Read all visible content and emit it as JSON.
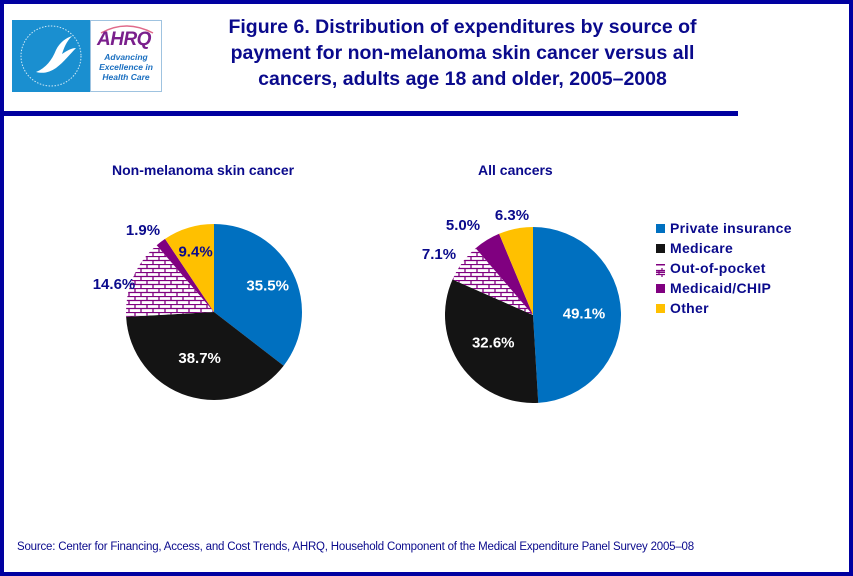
{
  "logo": {
    "hhs_icon": "hhs-eagle-icon",
    "ahrq_wordmark": "AHRQ",
    "ahrq_tagline": "Advancing Excellence in Health Care"
  },
  "title": "Figure 6. Distribution of expenditures by source of payment for non-melanoma skin cancer versus all cancers, adults age 18 and older, 2005–2008",
  "colors": {
    "frame": "#0000a0",
    "text": "#0a0a8c",
    "private_insurance": "#0070c0",
    "medicare": "#141414",
    "out_of_pocket": "#800080",
    "medicaid_chip": "#800080",
    "other": "#ffc000"
  },
  "legend": [
    {
      "label": "Private insurance",
      "key": "private_insurance"
    },
    {
      "label": "Medicare",
      "key": "medicare"
    },
    {
      "label": "Out-of-pocket",
      "key": "out_of_pocket"
    },
    {
      "label": "Medicaid/CHIP",
      "key": "medicaid_chip"
    },
    {
      "label": "Other",
      "key": "other"
    }
  ],
  "chart_data": [
    {
      "type": "pie",
      "title": "Non-melanoma skin cancer",
      "categories": [
        "Private insurance",
        "Medicare",
        "Out-of-pocket",
        "Medicaid/CHIP",
        "Other"
      ],
      "values": [
        35.5,
        38.7,
        14.6,
        1.9,
        9.4
      ],
      "labels": [
        "35.5%",
        "38.7%",
        "14.6%",
        "1.9%",
        "9.4%"
      ],
      "start": "12 o'clock",
      "direction": "clockwise",
      "legend": "right"
    },
    {
      "type": "pie",
      "title": "All cancers",
      "categories": [
        "Private insurance",
        "Medicare",
        "Out-of-pocket",
        "Medicaid/CHIP",
        "Other"
      ],
      "values": [
        49.1,
        32.6,
        7.1,
        5.0,
        6.3
      ],
      "labels": [
        "49.1%",
        "32.6%",
        "7.1%",
        "5.0%",
        "6.3%"
      ],
      "start": "12 o'clock",
      "direction": "clockwise",
      "legend": "right"
    }
  ],
  "source": "Source: Center for Financing, Access, and Cost Trends, AHRQ, Household Component of the Medical Expenditure Panel Survey 2005–08"
}
